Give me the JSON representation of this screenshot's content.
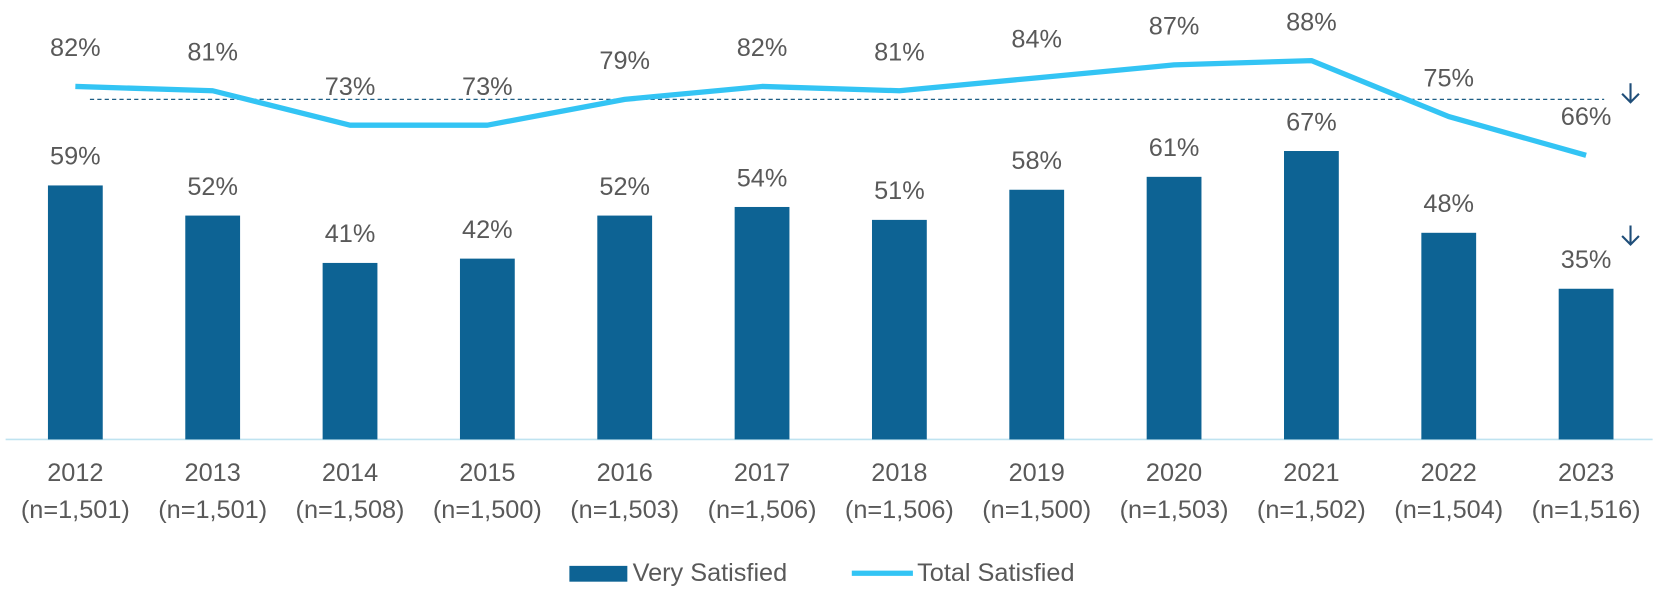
{
  "chart_data": {
    "type": "bar-line",
    "categories": [
      "2012",
      "2013",
      "2014",
      "2015",
      "2016",
      "2017",
      "2018",
      "2019",
      "2020",
      "2021",
      "2022",
      "2023"
    ],
    "sample_sizes": [
      "(n=1,501)",
      "(n=1,501)",
      "(n=1,508)",
      "(n=1,500)",
      "(n=1,503)",
      "(n=1,506)",
      "(n=1,506)",
      "(n=1,500)",
      "(n=1,503)",
      "(n=1,502)",
      "(n=1,504)",
      "(n=1,516)"
    ],
    "series": [
      {
        "name": "Very Satisfied",
        "type": "bar",
        "color": "#0d6394",
        "values": [
          59,
          52,
          41,
          42,
          52,
          54,
          51,
          58,
          61,
          67,
          48,
          35
        ],
        "value_labels": [
          "59%",
          "52%",
          "41%",
          "42%",
          "52%",
          "54%",
          "51%",
          "58%",
          "61%",
          "67%",
          "48%",
          "35%"
        ]
      },
      {
        "name": "Total Satisfied",
        "type": "line",
        "color": "#33c4f4",
        "values": [
          82,
          81,
          73,
          73,
          79,
          82,
          81,
          84,
          87,
          88,
          75,
          66
        ],
        "value_labels": [
          "82%",
          "81%",
          "73%",
          "73%",
          "79%",
          "82%",
          "81%",
          "84%",
          "87%",
          "88%",
          "75%",
          "66%"
        ]
      }
    ],
    "reference_line": 79,
    "ylim": [
      0,
      100
    ]
  }
}
